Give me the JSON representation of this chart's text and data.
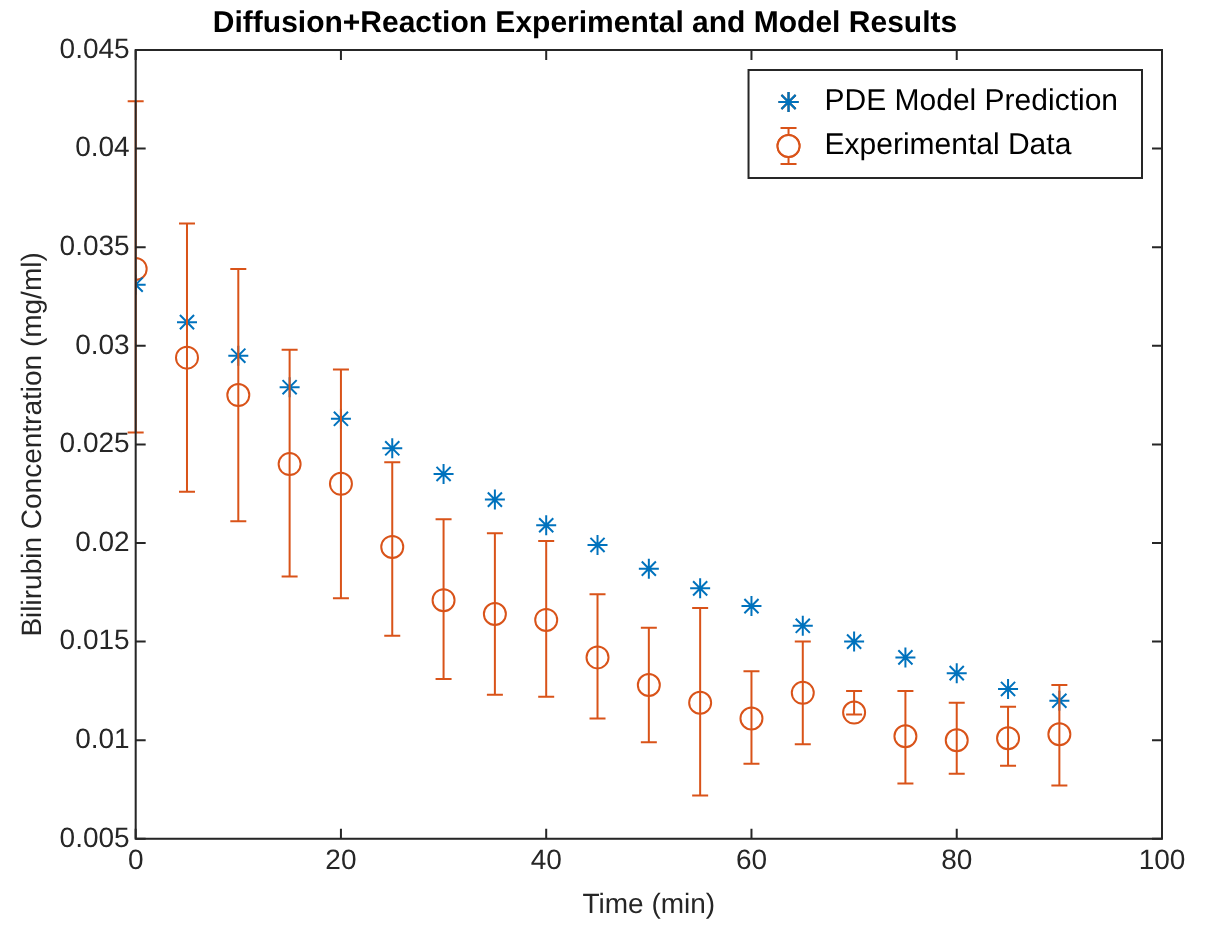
{
  "chart_data": {
    "type": "scatter",
    "title": "Diffusion+Reaction Experimental and Model Results",
    "xlabel": "Time (min)",
    "ylabel": "Bilirubin Concentration (mg/ml)",
    "x": [
      0,
      5,
      10,
      15,
      20,
      25,
      30,
      35,
      40,
      45,
      50,
      55,
      60,
      65,
      70,
      75,
      80,
      85,
      90
    ],
    "series": [
      {
        "name": "PDE Model Prediction",
        "color": "#0072bd",
        "marker": "cross",
        "values": [
          0.0331,
          0.0312,
          0.0295,
          0.0279,
          0.0263,
          0.0248,
          0.0235,
          0.0222,
          0.0209,
          0.0199,
          0.0187,
          0.0177,
          0.0168,
          0.0158,
          0.015,
          0.0142,
          0.0134,
          0.0126,
          0.012
        ]
      },
      {
        "name": "Experimental Data",
        "color": "#d95319",
        "marker": "circle",
        "values": [
          0.0339,
          0.0294,
          0.0275,
          0.024,
          0.023,
          0.0198,
          0.0171,
          0.0164,
          0.0161,
          0.0142,
          0.0128,
          0.0119,
          0.0111,
          0.0124,
          0.0114,
          0.0102,
          0.01,
          0.0101,
          0.0103
        ],
        "errors": [
          [
            0.0256,
            0.0424
          ],
          [
            0.0226,
            0.0362
          ],
          [
            0.0211,
            0.0339
          ],
          [
            0.0183,
            0.0298
          ],
          [
            0.0172,
            0.0288
          ],
          [
            0.0153,
            0.0241
          ],
          [
            0.0131,
            0.0212
          ],
          [
            0.0123,
            0.0205
          ],
          [
            0.0122,
            0.0201
          ],
          [
            0.0111,
            0.0174
          ],
          [
            0.0099,
            0.0157
          ],
          [
            0.0072,
            0.0167
          ],
          [
            0.0088,
            0.0135
          ],
          [
            0.0098,
            0.015
          ],
          [
            0.0113,
            0.0125
          ],
          [
            0.0078,
            0.0125
          ],
          [
            0.0083,
            0.0119
          ],
          [
            0.0087,
            0.0117
          ],
          [
            0.0077,
            0.0128
          ]
        ]
      }
    ],
    "xlim": [
      0,
      100
    ],
    "xticks": [
      0,
      20,
      40,
      60,
      80,
      100
    ],
    "ylim": [
      0.005,
      0.045
    ],
    "yticks": [
      {
        "value": 0.005,
        "label": "0.005"
      },
      {
        "value": 0.01,
        "label": "0.01"
      },
      {
        "value": 0.015,
        "label": "0.015"
      },
      {
        "value": 0.02,
        "label": "0.02"
      },
      {
        "value": 0.025,
        "label": "0.025"
      },
      {
        "value": 0.03,
        "label": "0.03"
      },
      {
        "value": 0.035,
        "label": "0.035"
      },
      {
        "value": 0.04,
        "label": "0.04"
      },
      {
        "value": 0.045,
        "label": "0.045"
      }
    ],
    "legend": "top right",
    "grid": false
  }
}
